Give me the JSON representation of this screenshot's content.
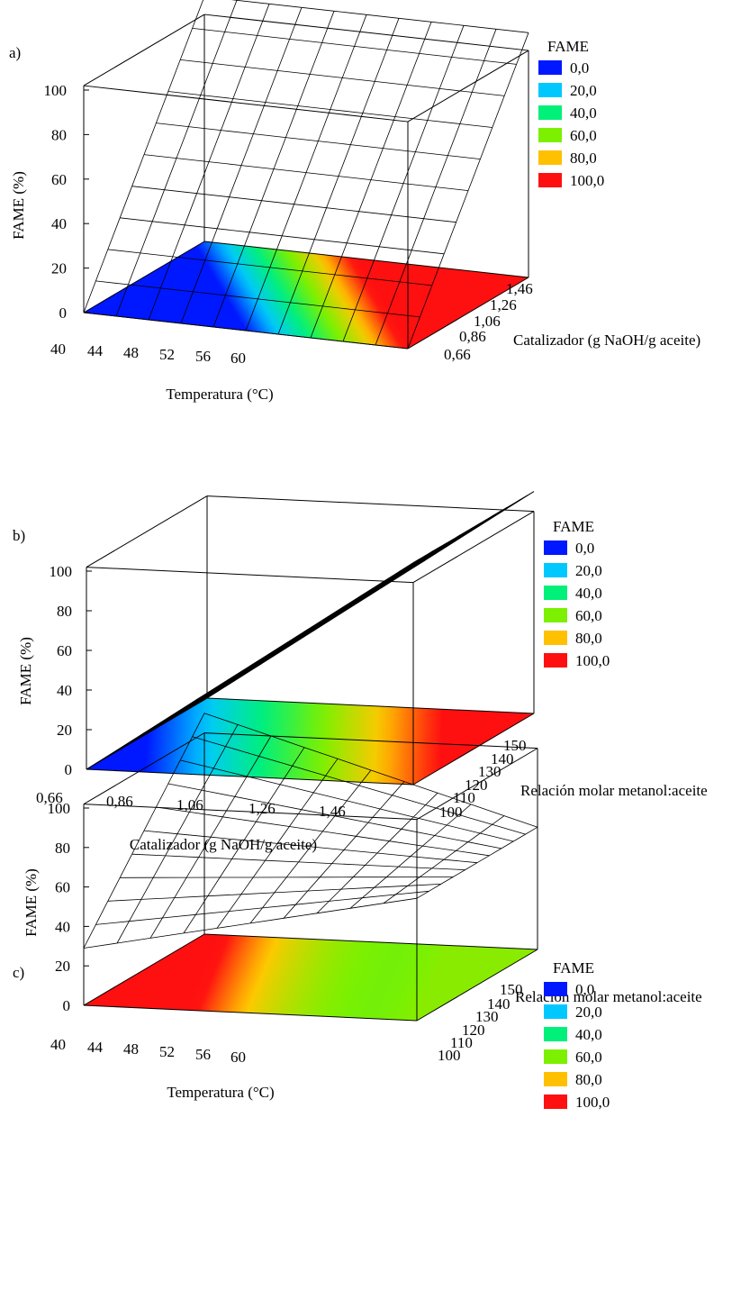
{
  "chart_data": [
    {
      "type": "surface",
      "panel_label": "a)",
      "xlabel": "Temperatura (°C)",
      "ylabel": "Catalizador (g NaOH/g aceite)",
      "zlabel": "FAME (%)",
      "x_ticks": [
        "40",
        "44",
        "48",
        "52",
        "56",
        "60"
      ],
      "y_ticks": [
        "0,66",
        "0,86",
        "1,06",
        "1,26",
        "1,46"
      ],
      "z_ticks": [
        "0",
        "20",
        "40",
        "60",
        "80",
        "100"
      ],
      "xlim": [
        40,
        60
      ],
      "ylim": [
        0.66,
        1.46
      ],
      "zlim": [
        0,
        100
      ],
      "surface": {
        "z_at_xmin_ymin": 0,
        "z_at_xmax_ymin": 0,
        "z_at_xmin_ymax": 110,
        "z_at_xmax_ymax": 110
      },
      "contour_projection": "floor",
      "legend": {
        "title": "FAME",
        "entries": [
          "0,0",
          "20,0",
          "40,0",
          "60,0",
          "80,0",
          "100,0"
        ],
        "colors": [
          "#0018ff",
          "#00c8ff",
          "#00f07a",
          "#7cf000",
          "#ffc000",
          "#ff1010"
        ]
      }
    },
    {
      "type": "surface",
      "panel_label": "b)",
      "xlabel": "Catalizador (g NaOH/g aceite)",
      "ylabel": "Relación molar metanol:aceite",
      "zlabel": "FAME (%)",
      "x_ticks": [
        "0,66",
        "0,86",
        "1,06",
        "1,26",
        "1,46"
      ],
      "y_ticks": [
        "100",
        "110",
        "120",
        "130",
        "140",
        "150"
      ],
      "z_ticks": [
        "0",
        "20",
        "40",
        "60",
        "80",
        "100"
      ],
      "xlim": [
        0.66,
        1.46
      ],
      "ylim": [
        100,
        150
      ],
      "zlim": [
        0,
        100
      ],
      "surface": {
        "z_at_xmin_ymin": 0,
        "z_at_xmax_ymin": 112,
        "z_at_xmin_ymax": 0,
        "z_at_xmax_ymax": 112
      },
      "contour_projection": "floor",
      "legend": {
        "title": "FAME",
        "entries": [
          "0,0",
          "20,0",
          "40,0",
          "60,0",
          "80,0",
          "100,0"
        ],
        "colors": [
          "#0018ff",
          "#00c8ff",
          "#00f07a",
          "#7cf000",
          "#ffc000",
          "#ff1010"
        ]
      }
    },
    {
      "type": "surface",
      "panel_label": "c)",
      "xlabel": "Temperatura (°C)",
      "ylabel": "Relación molar metanol:aceite",
      "zlabel": "FAME (%)",
      "x_ticks": [
        "40",
        "44",
        "48",
        "52",
        "56",
        "60"
      ],
      "y_ticks": [
        "100",
        "110",
        "120",
        "130",
        "140",
        "150"
      ],
      "z_ticks": [
        "0",
        "20",
        "40",
        "60",
        "80",
        "100"
      ],
      "xlim": [
        40,
        60
      ],
      "ylim": [
        100,
        150
      ],
      "zlim": [
        0,
        100
      ],
      "surface": {
        "z_at_xmin_ymin": 29,
        "z_at_xmax_ymin": 62,
        "z_at_xmin_ymax": 112,
        "z_at_xmax_ymax": 62
      },
      "contour_projection": "floor",
      "legend": {
        "title": "FAME",
        "entries": [
          "0,0",
          "20,0",
          "40,0",
          "60,0",
          "80,0",
          "100,0"
        ],
        "colors": [
          "#0018ff",
          "#00c8ff",
          "#00f07a",
          "#7cf000",
          "#ffc000",
          "#ff1010"
        ]
      }
    }
  ]
}
